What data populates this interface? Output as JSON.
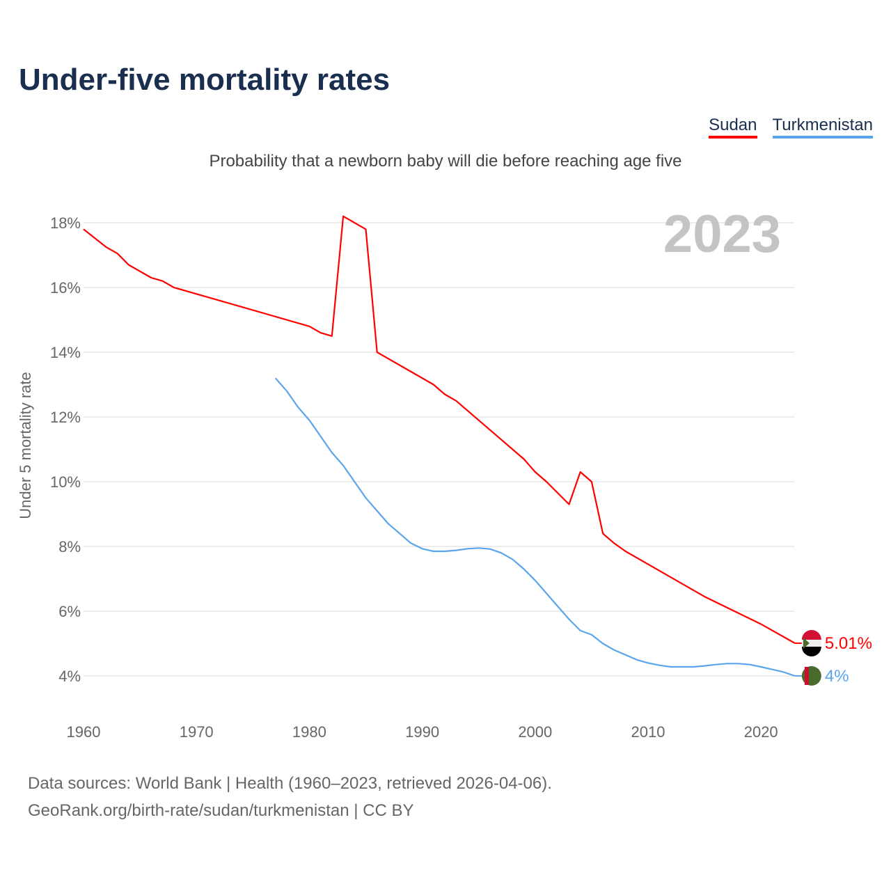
{
  "title": "Under-five mortality rates",
  "subtitle": "Probability that a newborn baby will die before reaching age five",
  "footer": {
    "line1": "Data sources: World Bank | Health (1960–2023, retrieved 2026-04-06).",
    "line2": "GeoRank.org/birth-rate/sudan/turkmenistan | CC BY"
  },
  "chart_data": {
    "type": "line",
    "title": "Under-five mortality rates",
    "ylabel": "Under 5 mortality rate",
    "xlabel": "",
    "year_label": "2023",
    "xlim": [
      1960,
      2023
    ],
    "ylim": [
      3.3,
      18.3
    ],
    "xticks": [
      1960,
      1970,
      1980,
      1990,
      2000,
      2010,
      2020
    ],
    "yticks": [
      4,
      6,
      8,
      10,
      12,
      14,
      16,
      18
    ],
    "ytick_labels": [
      "4%",
      "6%",
      "8%",
      "10%",
      "12%",
      "14%",
      "16%",
      "18%"
    ],
    "grid": true,
    "legend": "top-right",
    "series": [
      {
        "name": "Sudan",
        "color": "#ff0000",
        "end_label": "5.01%",
        "x": [
          1960,
          1962,
          1963,
          1964,
          1966,
          1967,
          1968,
          1980,
          1981,
          1982,
          1983,
          1985,
          1986,
          1991,
          1992,
          1993,
          1999,
          2000,
          2001,
          2003,
          2004,
          2005,
          2006,
          2007,
          2008,
          2010,
          2015,
          2020,
          2023
        ],
        "y": [
          17.8,
          17.25,
          17.05,
          16.7,
          16.3,
          16.2,
          16.0,
          14.8,
          14.6,
          14.5,
          18.2,
          17.8,
          14.0,
          13.0,
          12.7,
          12.5,
          10.7,
          10.3,
          10.0,
          9.3,
          10.3,
          10.0,
          8.4,
          8.1,
          7.85,
          7.45,
          6.45,
          5.6,
          5.01
        ]
      },
      {
        "name": "Turkmenistan",
        "color": "#5aa5ec",
        "end_label": "4%",
        "x": [
          1977,
          1978,
          1979,
          1980,
          1981,
          1982,
          1983,
          1984,
          1985,
          1986,
          1987,
          1988,
          1989,
          1990,
          1991,
          1992,
          1993,
          1994,
          1995,
          1996,
          1997,
          1998,
          1999,
          2000,
          2001,
          2002,
          2003,
          2004,
          2005,
          2006,
          2007,
          2008,
          2009,
          2010,
          2011,
          2012,
          2013,
          2014,
          2015,
          2016,
          2017,
          2018,
          2019,
          2020,
          2021,
          2022,
          2023
        ],
        "y": [
          13.2,
          12.8,
          12.3,
          11.9,
          11.4,
          10.9,
          10.5,
          10.0,
          9.5,
          9.1,
          8.7,
          8.4,
          8.1,
          7.93,
          7.85,
          7.85,
          7.88,
          7.93,
          7.95,
          7.92,
          7.8,
          7.6,
          7.3,
          6.95,
          6.55,
          6.15,
          5.75,
          5.4,
          5.27,
          5.0,
          4.8,
          4.65,
          4.5,
          4.4,
          4.33,
          4.28,
          4.28,
          4.28,
          4.31,
          4.35,
          4.38,
          4.38,
          4.35,
          4.28,
          4.2,
          4.12,
          4.0
        ]
      }
    ]
  }
}
